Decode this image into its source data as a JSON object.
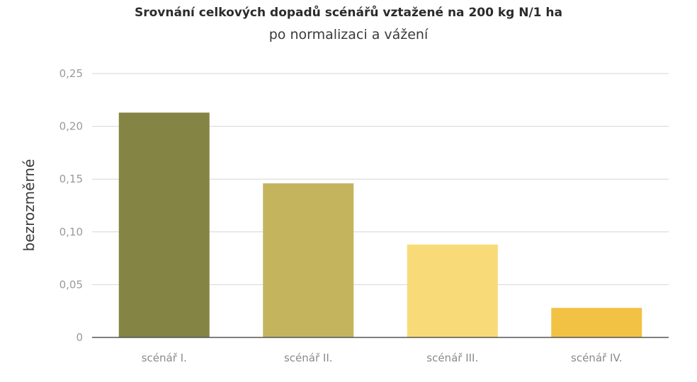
{
  "chart_data": {
    "type": "bar",
    "title": "Srovnání celkových dopadů scénářů vztažené na 200 kg N/1 ha",
    "subtitle": "po normalizaci a vážení",
    "xlabel": "",
    "ylabel": "bezrozměrné",
    "categories": [
      "scénář I.",
      "scénář II.",
      "scénář III.",
      "scénář IV."
    ],
    "values": [
      0.213,
      0.146,
      0.088,
      0.028
    ],
    "colors": [
      "#848445",
      "#c4b45e",
      "#f8da78",
      "#f2c244"
    ],
    "ylim": [
      0,
      0.25
    ],
    "yticks": [
      0,
      0.05,
      0.1,
      0.15,
      0.2,
      0.25
    ],
    "ytick_labels": [
      "0",
      "0,05",
      "0,10",
      "0,15",
      "0,20",
      "0,25"
    ],
    "grid": true,
    "legend": "none"
  }
}
